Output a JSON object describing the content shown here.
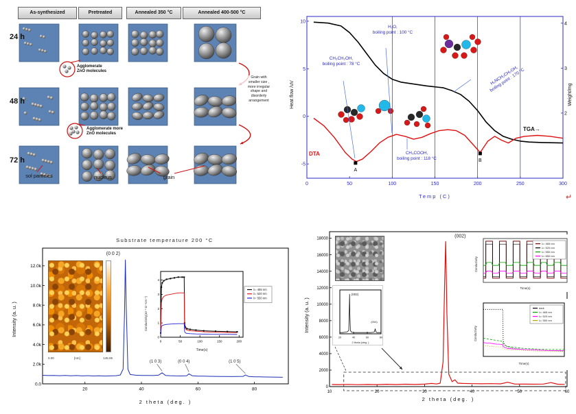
{
  "panel_growth": {
    "col_headers": [
      "As-synthesized",
      "Pretreated",
      "Annealed 350 °C",
      "Annealed 400-500 °C"
    ],
    "row_labels": [
      "24 h",
      "48 h",
      "72 h"
    ],
    "callout_agglomerate_1": "Agglomerate\nZnO molecules",
    "callout_agglomerate_2": "Agglomerate more\nZnO molecules",
    "grain_note": "Grain with\nsmaller size ,\nmore irregular\nshape and\ndisorderly\narrangement",
    "bottom_labels": [
      "sol particles",
      "nucleus",
      "grain"
    ]
  },
  "return_mark": "↵",
  "chart_data": [
    {
      "id": "dta-tga",
      "type": "line",
      "xlabel": "Temp (C)",
      "ylabel_left": "Heat flow /uV",
      "ylabel_right": "Weight/mg",
      "xlim": [
        0,
        300
      ],
      "ylim_left": [
        -6.5,
        10.5
      ],
      "ylim_right": [
        0.55,
        4.15
      ],
      "xticks": [
        0,
        50,
        100,
        150,
        200,
        250,
        300
      ],
      "yticks_left": [
        -5,
        0,
        5,
        10
      ],
      "yticks_right": [
        2,
        3,
        4
      ],
      "grid_x": [
        100,
        150,
        200,
        250
      ],
      "axis_color": "#2a2ac8",
      "tick_color": "#2a2ac8",
      "tick_color_right": "#111111",
      "series": [
        {
          "name": "TGA",
          "color": "#000000",
          "width": 1.6,
          "x": [
            8,
            25,
            40,
            50,
            60,
            70,
            80,
            90,
            100,
            110,
            125,
            140,
            150,
            160,
            170,
            180,
            190,
            200,
            210,
            220,
            230,
            240,
            250,
            260,
            275,
            300
          ],
          "y": [
            9.9,
            9.8,
            9.5,
            8.8,
            7.8,
            6.6,
            5.4,
            4.5,
            3.9,
            3.6,
            3.4,
            3.2,
            3.1,
            3.0,
            2.7,
            2.3,
            1.6,
            0.6,
            -0.6,
            -1.5,
            -2.1,
            -2.4,
            -2.6,
            -2.7,
            -2.75,
            -2.8
          ]
        },
        {
          "name": "DTA",
          "color": "#e01010",
          "width": 1.4,
          "x": [
            8,
            20,
            32,
            45,
            53,
            58,
            65,
            75,
            85,
            95,
            105,
            115,
            125,
            135,
            145,
            155,
            165,
            175,
            185,
            195,
            203,
            212,
            220,
            228,
            236,
            245,
            255,
            270,
            285,
            300
          ],
          "y": [
            -0.2,
            -1.0,
            -2.2,
            -3.8,
            -4.5,
            -4.75,
            -4.5,
            -3.7,
            -2.8,
            -2.2,
            -1.9,
            -2.1,
            -2.4,
            -2.2,
            -1.8,
            -1.5,
            -1.4,
            -1.5,
            -2.0,
            -3.0,
            -3.8,
            -2.6,
            -2.1,
            -2.5,
            -2.8,
            -2.3,
            -2.1,
            -2.0,
            -2.1,
            -2.3
          ]
        }
      ],
      "point_labels": [
        {
          "text": "A",
          "x": 57,
          "y": -4.9
        },
        {
          "text": "B",
          "x": 203,
          "y": -3.9
        }
      ],
      "annotations": {
        "ethanol": "CH₃CH₂OH,\nboiling point : 78 °C",
        "water": "H₂O,\nboiling point : 100 °C",
        "acetic": "CH₃COOH,\nboiling point : 118 °C",
        "mea": "H₂NCH₂CH₂OH,\nboiling point : 170 °C",
        "tga": "TGA",
        "tga_arrow": "→",
        "dta": "DTA"
      }
    },
    {
      "id": "xrd-substrate-200",
      "type": "line",
      "title": "Substrate temperature 200 °C",
      "xlabel": "2 theta (deg. )",
      "ylabel": "Intensity (a. u. )",
      "xlim": [
        5,
        92
      ],
      "ylim": [
        0,
        13800
      ],
      "xticks": [
        20,
        40,
        60,
        80
      ],
      "ytick_values": [
        0,
        2000,
        4000,
        6000,
        8000,
        10000,
        12000
      ],
      "ytick_labels": [
        "0.0",
        "2.0k",
        "4.0k",
        "6.0k",
        "8.0k",
        "10.0k",
        "12.0k"
      ],
      "series": [
        {
          "name": "XRD",
          "color": "#1c2fb5",
          "width": 1,
          "x": [
            5,
            7,
            9,
            11,
            13,
            15,
            17,
            19,
            21,
            23,
            25,
            27,
            29,
            31,
            32.5,
            33.5,
            34,
            34.3,
            34.6,
            35.2,
            36,
            38,
            40,
            42,
            44,
            46,
            47.3,
            48.5,
            50,
            52,
            54,
            56,
            56.8,
            58,
            60,
            62,
            64,
            66,
            68,
            70,
            72,
            74,
            76,
            76.8,
            78,
            80,
            82,
            84,
            86,
            88,
            90
          ],
          "y": [
            870,
            840,
            860,
            830,
            850,
            820,
            840,
            810,
            830,
            800,
            820,
            795,
            810,
            830,
            900,
            1500,
            7000,
            12600,
            8000,
            1500,
            950,
            880,
            860,
            850,
            840,
            880,
            1120,
            860,
            830,
            810,
            800,
            820,
            1020,
            820,
            790,
            780,
            770,
            760,
            750,
            745,
            740,
            745,
            760,
            900,
            745,
            720,
            710,
            700,
            690,
            680,
            670
          ]
        }
      ],
      "peak_labels": [
        {
          "text": "(0 0 2)",
          "x": 30,
          "y": 13100,
          "fs": 7
        },
        {
          "text": "(1 0 3)",
          "x": 45,
          "y": 2150,
          "fs": 6,
          "tx": 47.3,
          "ty": 1300
        },
        {
          "text": "(0 0 4)",
          "x": 55,
          "y": 2150,
          "fs": 6,
          "tx": 56.8,
          "ty": 1200
        },
        {
          "text": "(1 0 5)",
          "x": 73,
          "y": 2150,
          "fs": 6,
          "tx": 76.8,
          "ty": 1050
        }
      ],
      "inset_afm": {
        "scale_min": "0.00",
        "scale_unit": "[nm]",
        "scale_max": "145.06"
      },
      "inset_conductivity": {
        "xlabel": "Time(s)",
        "ylabel": "Conductivity(10⁻³ Ω⁻¹cm⁻¹)",
        "xlim": [
          0,
          210
        ],
        "ylim": [
          0,
          4.6
        ],
        "xticks": [
          0,
          50,
          100,
          150,
          200
        ],
        "yticks": [
          0,
          1,
          2,
          3,
          4
        ],
        "legend": [
          "λ= 465 nm",
          "λ= 520 nm",
          "λ= 550 nm"
        ],
        "legend_colors": [
          "#000000",
          "#e01010",
          "#2020d0"
        ],
        "series": [
          {
            "color": "#000000",
            "width": 1,
            "markers": true,
            "x": [
              0,
              2,
              4,
              8,
              15,
              25,
              35,
              45,
              55,
              60,
              61,
              63,
              67,
              75,
              90,
              110,
              140,
              170,
              195
            ],
            "y": [
              0.3,
              3.5,
              3.8,
              3.95,
              4.05,
              4.1,
              4.15,
              4.2,
              4.2,
              4.2,
              1.0,
              0.7,
              0.6,
              0.55,
              0.5,
              0.45,
              0.42,
              0.4,
              0.38
            ]
          },
          {
            "color": "#e01010",
            "width": 0.9,
            "x": [
              0,
              2,
              4,
              8,
              15,
              25,
              35,
              45,
              55,
              60,
              61,
              63,
              67,
              75,
              90,
              110,
              140,
              170,
              195
            ],
            "y": [
              0.25,
              2.4,
              2.7,
              2.85,
              2.95,
              3.0,
              3.05,
              3.1,
              3.1,
              3.1,
              0.8,
              0.6,
              0.5,
              0.45,
              0.42,
              0.38,
              0.35,
              0.33,
              0.32
            ]
          },
          {
            "color": "#2020d0",
            "width": 0.9,
            "x": [
              0,
              2,
              4,
              8,
              15,
              25,
              35,
              45,
              55,
              60,
              61,
              63,
              67,
              75,
              90,
              110,
              140,
              170,
              195
            ],
            "y": [
              0.15,
              0.75,
              0.82,
              0.86,
              0.9,
              0.92,
              0.94,
              0.95,
              0.95,
              0.95,
              0.4,
              0.3,
              0.27,
              0.25,
              0.23,
              0.22,
              0.2,
              0.2,
              0.19
            ]
          }
        ]
      }
    },
    {
      "id": "xrd-film",
      "type": "line",
      "xlabel": "2 theta (deg. )",
      "ylabel": "Intensity (a. u. )",
      "xlim": [
        10,
        60
      ],
      "ylim": [
        0,
        18800
      ],
      "xticks": [
        10,
        20,
        30,
        40,
        50,
        60
      ],
      "yticks": [
        0,
        2000,
        4000,
        6000,
        8000,
        10000,
        12000,
        14000,
        16000,
        18000
      ],
      "series": [
        {
          "name": "XRD",
          "color": "#e01010",
          "width": 1.2,
          "x": [
            10.5,
            12,
            14,
            16,
            18,
            20,
            22,
            24,
            26,
            28,
            30,
            31.5,
            32.5,
            33.3,
            33.9,
            34.2,
            34.45,
            34.7,
            35.1,
            35.8,
            36.4,
            37,
            38,
            40,
            42,
            44,
            46,
            47.5,
            49,
            51,
            53,
            55,
            56.6,
            58,
            59.5
          ],
          "y": [
            260,
            240,
            270,
            230,
            260,
            240,
            280,
            250,
            290,
            260,
            300,
            380,
            320,
            420,
            3000,
            12000,
            17600,
            9000,
            1500,
            600,
            820,
            420,
            380,
            360,
            340,
            360,
            330,
            520,
            310,
            300,
            290,
            310,
            480,
            290,
            270
          ]
        }
      ],
      "peak_labels": [
        {
          "text": "(002)",
          "x": 37.5,
          "y": 18100,
          "fs": 7
        }
      ],
      "dash_box": {
        "x0": 13,
        "x1": 59.7,
        "y0": 0,
        "y1": 1750,
        "pad": 6
      },
      "inset_xrd": {
        "xlabel": "2 theta (deg. )",
        "xlim": [
          20,
          80
        ],
        "ylim": [
          0,
          105
        ],
        "xticks": [
          20,
          40,
          60,
          80
        ],
        "series": [
          {
            "color": "#111111",
            "width": 0.8,
            "x": [
              20,
              24,
              28,
              31,
              33,
              33.8,
              34.2,
              34.6,
              35.4,
              37,
              40,
              45,
              50,
              55,
              60,
              65,
              70,
              71.6,
              72.4,
              74,
              78,
              80
            ],
            "y": [
              3,
              3,
              4,
              5,
              8,
              60,
              95,
              50,
              8,
              4,
              3,
              3,
              3,
              3,
              3,
              3,
              4,
              12,
              5,
              3,
              3,
              3
            ]
          }
        ],
        "peak_labels": [
          {
            "text": "(002)",
            "x": 42,
            "y": 92,
            "fs": 4.5
          },
          {
            "text": "(004)",
            "x": 70,
            "y": 26,
            "fs": 4
          }
        ]
      },
      "inset_response": {
        "xlabel": "Time(s)",
        "ylabel": "Conductivity",
        "legend": [
          "λ= 465 nm",
          "λ= 520 nm",
          "λ= 550 nm",
          "λ= 650 nm"
        ],
        "legend_colors": [
          "#7a0000",
          "#000000",
          "#00a000",
          "#ff00ff"
        ]
      },
      "inset_decay": {
        "xlabel": "Time(s)",
        "ylabel": "Conductivity",
        "xlim": [
          0,
          1
        ],
        "ylim": [
          0,
          1
        ],
        "legend": [
          "dark",
          "λ= 465 nm",
          "λ= 520 nm",
          "λ= 550 nm"
        ],
        "legend_colors": [
          "#000000",
          "#00a000",
          "#ff00ff",
          "#b8a000"
        ],
        "series": [
          {
            "color": "#000000",
            "width": 1,
            "dash": "1 2",
            "x": [
              0,
              0.04,
              0.08,
              0.12,
              0.16,
              0.2,
              0.24,
              0.245,
              0.26,
              0.3,
              0.38,
              0.5,
              0.65,
              0.8,
              1.0
            ],
            "y": [
              0.88,
              0.88,
              0.88,
              0.88,
              0.88,
              0.88,
              0.88,
              0.3,
              0.22,
              0.18,
              0.15,
              0.13,
              0.12,
              0.11,
              0.1
            ]
          },
          {
            "color": "#00a000",
            "width": 0.8,
            "dash": "3 2",
            "x": [
              0,
              0.04,
              0.08,
              0.12,
              0.16,
              0.2,
              0.24,
              0.245,
              0.26,
              0.3,
              0.38,
              0.5,
              0.65,
              0.8,
              1.0
            ],
            "y": [
              0.34,
              0.33,
              0.32,
              0.31,
              0.3,
              0.29,
              0.28,
              0.24,
              0.21,
              0.19,
              0.17,
              0.15,
              0.14,
              0.13,
              0.13
            ]
          },
          {
            "color": "#ff00ff",
            "width": 0.8,
            "x": [
              0,
              0.04,
              0.08,
              0.12,
              0.16,
              0.2,
              0.24,
              0.245,
              0.26,
              0.3,
              0.38,
              0.5,
              0.65,
              0.8,
              1.0
            ],
            "y": [
              0.26,
              0.25,
              0.25,
              0.24,
              0.23,
              0.23,
              0.22,
              0.19,
              0.17,
              0.15,
              0.14,
              0.13,
              0.12,
              0.11,
              0.11
            ]
          },
          {
            "color": "#b8a000",
            "width": 0.8,
            "dash": "1 2",
            "x": [
              0,
              0.04,
              0.08,
              0.12,
              0.16,
              0.2,
              0.24,
              0.245,
              0.26,
              0.3,
              0.38,
              0.5,
              0.65,
              0.8,
              1.0
            ],
            "y": [
              0.2,
              0.2,
              0.19,
              0.19,
              0.18,
              0.18,
              0.18,
              0.15,
              0.14,
              0.13,
              0.12,
              0.11,
              0.1,
              0.1,
              0.09
            ]
          }
        ]
      }
    }
  ]
}
